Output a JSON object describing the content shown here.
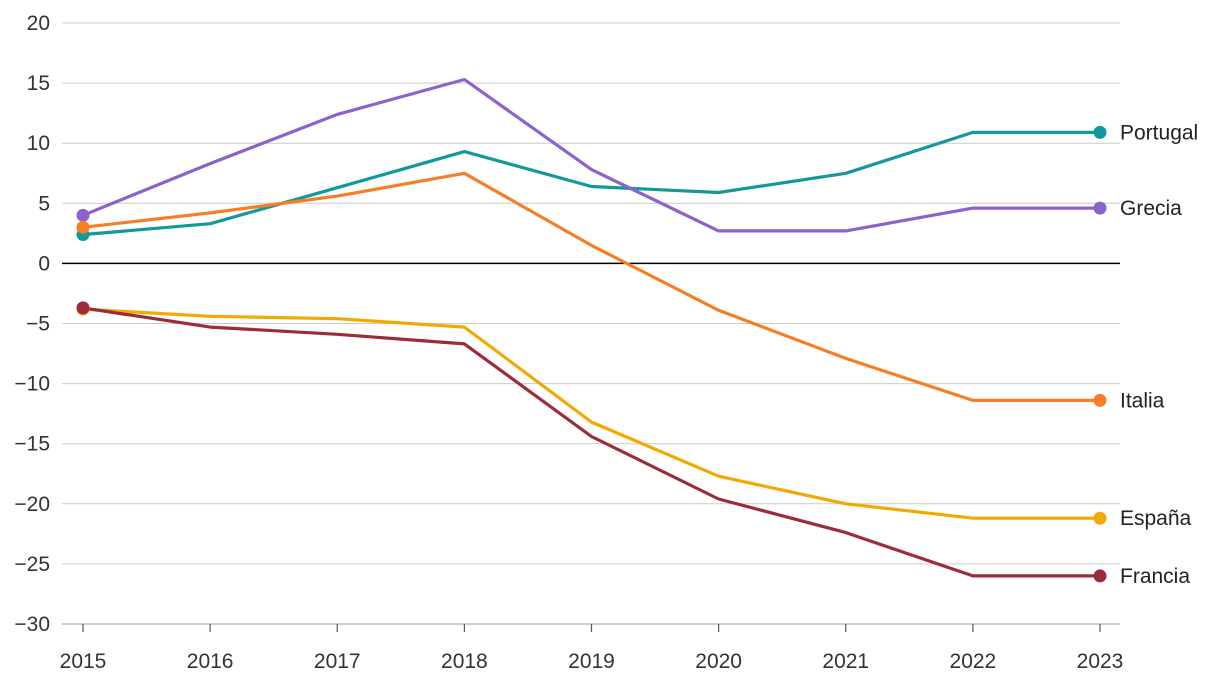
{
  "chart_data": {
    "type": "line",
    "title": "",
    "xlabel": "",
    "ylabel": "",
    "categories": [
      "2015",
      "2016",
      "2017",
      "2018",
      "2019",
      "2020",
      "2021",
      "2022",
      "2023"
    ],
    "ylim": [
      -30,
      20
    ],
    "yticks": [
      20,
      15,
      10,
      5,
      0,
      -5,
      -10,
      -15,
      -20,
      -25,
      -30
    ],
    "ytick_labels": [
      "20",
      "15",
      "10",
      "5",
      "0",
      "−5",
      "−10",
      "−15",
      "−20",
      "−25",
      "−30"
    ],
    "grid": true,
    "legend": "inline-end-labels",
    "series": [
      {
        "name": "Portugal",
        "color": "#14999a",
        "values": [
          2.4,
          3.3,
          6.3,
          9.3,
          6.4,
          5.9,
          7.5,
          10.9,
          10.9
        ]
      },
      {
        "name": "Grecia",
        "color": "#8c62cc",
        "values": [
          4.0,
          8.3,
          12.4,
          15.3,
          7.8,
          2.7,
          2.7,
          4.6,
          4.6
        ]
      },
      {
        "name": "Italia",
        "color": "#f77e26",
        "values": [
          3.0,
          4.2,
          5.6,
          7.5,
          1.5,
          -3.9,
          -7.9,
          -11.4,
          -11.4
        ]
      },
      {
        "name": "España",
        "color": "#f2a900",
        "values": [
          -3.8,
          -4.4,
          -4.6,
          -5.3,
          -13.2,
          -17.7,
          -20.0,
          -21.2,
          -21.2
        ]
      },
      {
        "name": "Francia",
        "color": "#9b2d3a",
        "values": [
          -3.7,
          -5.3,
          -5.9,
          -6.7,
          -14.4,
          -19.6,
          -22.4,
          -26.0,
          -26.0
        ]
      }
    ]
  }
}
